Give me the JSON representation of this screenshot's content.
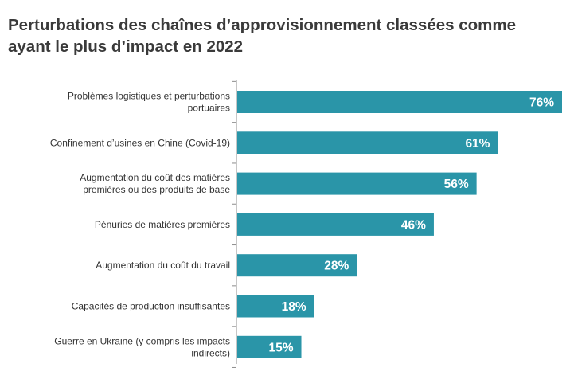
{
  "title": "Perturbations des chaînes d’approvisionnement classées comme ayant le plus d’impact en 2022",
  "chart_data": {
    "type": "bar",
    "orientation": "horizontal",
    "title": "Perturbations des chaînes d’approvisionnement classées comme ayant le plus d’impact en 2022",
    "xlabel": "",
    "ylabel": "",
    "xlim": [
      0,
      76
    ],
    "grid": false,
    "legend": "none",
    "bar_color": "#2a95a8",
    "value_suffix": "%",
    "categories": [
      [
        "Problèmes logistiques et perturbations",
        "portuaires"
      ],
      [
        "Confinement d’usines en Chine (Covid-19)"
      ],
      [
        "Augmentation du coût des matières",
        "premières ou des produits de base"
      ],
      [
        "Pénuries de matières premières"
      ],
      [
        "Augmentation du coût du travail"
      ],
      [
        "Capacités de production insuffisantes"
      ],
      [
        "Guerre en Ukraine (y compris les impacts",
        "indirects)"
      ]
    ],
    "values": [
      76,
      61,
      56,
      46,
      28,
      18,
      15
    ],
    "value_labels": [
      "76%",
      "61%",
      "56%",
      "46%",
      "28%",
      "18%",
      "15%"
    ]
  }
}
